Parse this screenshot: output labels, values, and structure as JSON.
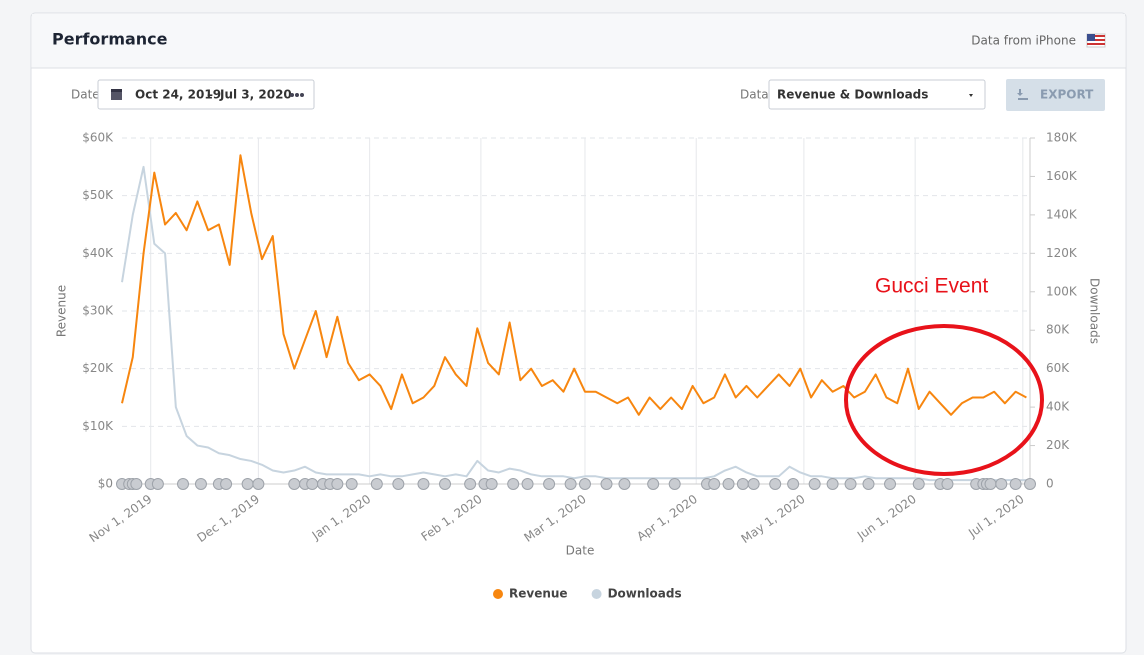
{
  "header": {
    "title": "Performance",
    "source": "Data from iPhone"
  },
  "controls": {
    "date_label": "Date:",
    "date_start": "Oct 24, 2019",
    "date_sep": "–",
    "date_end": "Jul 3, 2020",
    "data_label": "Data:",
    "data_value": "Revenue & Downloads",
    "export": "EXPORT"
  },
  "chart_data": {
    "type": "line",
    "x_label": "Date",
    "y_label": "Revenue",
    "y2_label": "Downloads",
    "annotation": "Gucci Event",
    "grid": true,
    "x": [
      "2019-10-24",
      "2019-10-27",
      "2019-10-30",
      "2019-11-02",
      "2019-11-05",
      "2019-11-08",
      "2019-11-11",
      "2019-11-14",
      "2019-11-17",
      "2019-11-20",
      "2019-11-23",
      "2019-11-26",
      "2019-11-29",
      "2019-12-02",
      "2019-12-05",
      "2019-12-08",
      "2019-12-11",
      "2019-12-14",
      "2019-12-17",
      "2019-12-20",
      "2019-12-23",
      "2019-12-26",
      "2019-12-29",
      "2020-01-01",
      "2020-01-04",
      "2020-01-07",
      "2020-01-10",
      "2020-01-13",
      "2020-01-16",
      "2020-01-19",
      "2020-01-22",
      "2020-01-25",
      "2020-01-28",
      "2020-01-31",
      "2020-02-03",
      "2020-02-06",
      "2020-02-09",
      "2020-02-12",
      "2020-02-15",
      "2020-02-18",
      "2020-02-21",
      "2020-02-24",
      "2020-02-27",
      "2020-03-01",
      "2020-03-04",
      "2020-03-07",
      "2020-03-10",
      "2020-03-13",
      "2020-03-16",
      "2020-03-19",
      "2020-03-22",
      "2020-03-25",
      "2020-03-28",
      "2020-03-31",
      "2020-04-03",
      "2020-04-06",
      "2020-04-09",
      "2020-04-12",
      "2020-04-15",
      "2020-04-18",
      "2020-04-21",
      "2020-04-24",
      "2020-04-27",
      "2020-04-30",
      "2020-05-03",
      "2020-05-06",
      "2020-05-09",
      "2020-05-12",
      "2020-05-15",
      "2020-05-18",
      "2020-05-21",
      "2020-05-24",
      "2020-05-27",
      "2020-05-30",
      "2020-06-02",
      "2020-06-05",
      "2020-06-08",
      "2020-06-11",
      "2020-06-14",
      "2020-06-17",
      "2020-06-20",
      "2020-06-23",
      "2020-06-26",
      "2020-06-29",
      "2020-07-02"
    ],
    "series": [
      {
        "name": "Revenue",
        "color": "#f7860f",
        "values": [
          14000,
          22000,
          40000,
          54000,
          45000,
          47000,
          44000,
          49000,
          44000,
          45000,
          38000,
          57000,
          47000,
          39000,
          43000,
          26000,
          20000,
          25000,
          30000,
          22000,
          29000,
          21000,
          18000,
          19000,
          17000,
          13000,
          19000,
          14000,
          15000,
          17000,
          22000,
          19000,
          17000,
          27000,
          21000,
          19000,
          28000,
          18000,
          20000,
          17000,
          18000,
          16000,
          20000,
          16000,
          16000,
          15000,
          14000,
          15000,
          12000,
          15000,
          13000,
          15000,
          13000,
          17000,
          14000,
          15000,
          19000,
          15000,
          17000,
          15000,
          17000,
          19000,
          17000,
          20000,
          15000,
          18000,
          16000,
          17000,
          15000,
          16000,
          19000,
          15000,
          14000,
          20000,
          13000,
          16000,
          14000,
          12000,
          14000,
          15000,
          15000,
          16000,
          14000,
          16000,
          15000
        ]
      },
      {
        "name": "Downloads",
        "color": "#c7d4df",
        "axis": "y2",
        "values": [
          105000,
          140000,
          165000,
          125000,
          120000,
          40000,
          25000,
          20000,
          19000,
          16000,
          15000,
          13000,
          12000,
          10000,
          7000,
          6000,
          7000,
          9000,
          6000,
          5000,
          5000,
          5000,
          5000,
          4000,
          5000,
          4000,
          4000,
          5000,
          6000,
          5000,
          4000,
          5000,
          4000,
          12000,
          7000,
          6000,
          8000,
          7000,
          5000,
          4000,
          4000,
          4000,
          3000,
          4000,
          4000,
          3000,
          3000,
          3000,
          3000,
          3000,
          3000,
          3000,
          3000,
          3000,
          3000,
          4000,
          7000,
          9000,
          6000,
          4000,
          4000,
          4000,
          9000,
          6000,
          4000,
          4000,
          3000,
          3000,
          3000,
          4000,
          3000,
          3000,
          3000,
          3000,
          3000,
          2000,
          2000,
          2000,
          2000,
          2000,
          2000,
          2000,
          2000,
          2000,
          2000
        ]
      }
    ],
    "events": [
      "2019-10-24",
      "2019-10-26",
      "2019-10-27",
      "2019-10-28",
      "2019-11-01",
      "2019-11-03",
      "2019-11-10",
      "2019-11-15",
      "2019-11-20",
      "2019-11-22",
      "2019-11-28",
      "2019-12-01",
      "2019-12-11",
      "2019-12-14",
      "2019-12-16",
      "2019-12-19",
      "2019-12-21",
      "2019-12-23",
      "2019-12-27",
      "2020-01-03",
      "2020-01-09",
      "2020-01-16",
      "2020-01-22",
      "2020-01-29",
      "2020-02-02",
      "2020-02-04",
      "2020-02-10",
      "2020-02-14",
      "2020-02-20",
      "2020-02-26",
      "2020-03-01",
      "2020-03-07",
      "2020-03-12",
      "2020-03-20",
      "2020-03-26",
      "2020-04-04",
      "2020-04-06",
      "2020-04-10",
      "2020-04-14",
      "2020-04-17",
      "2020-04-23",
      "2020-04-28",
      "2020-05-04",
      "2020-05-09",
      "2020-05-14",
      "2020-05-19",
      "2020-05-25",
      "2020-06-02",
      "2020-06-08",
      "2020-06-10",
      "2020-06-18",
      "2020-06-20",
      "2020-06-21",
      "2020-06-22",
      "2020-06-25",
      "2020-06-29",
      "2020-07-03"
    ],
    "xlim": [
      "2019-10-24",
      "2020-07-03"
    ],
    "xticks": [
      {
        "value": "2019-11-01",
        "label": "Nov 1, 2019"
      },
      {
        "value": "2019-12-01",
        "label": "Dec 1, 2019"
      },
      {
        "value": "2020-01-01",
        "label": "Jan 1, 2020"
      },
      {
        "value": "2020-02-01",
        "label": "Feb 1, 2020"
      },
      {
        "value": "2020-03-01",
        "label": "Mar 1, 2020"
      },
      {
        "value": "2020-04-01",
        "label": "Apr 1, 2020"
      },
      {
        "value": "2020-05-01",
        "label": "May 1, 2020"
      },
      {
        "value": "2020-06-01",
        "label": "Jun 1, 2020"
      },
      {
        "value": "2020-07-01",
        "label": "Jul 1, 2020"
      }
    ],
    "ylim": [
      0,
      60000
    ],
    "yticks": [
      {
        "value": 0,
        "label": "$0"
      },
      {
        "value": 10000,
        "label": "$10K"
      },
      {
        "value": 20000,
        "label": "$20K"
      },
      {
        "value": 30000,
        "label": "$30K"
      },
      {
        "value": 40000,
        "label": "$40K"
      },
      {
        "value": 50000,
        "label": "$50K"
      },
      {
        "value": 60000,
        "label": "$60K"
      }
    ],
    "y2lim": [
      0,
      180000
    ],
    "y2ticks": [
      0,
      {
        "value": 20000,
        "label": "20K"
      },
      {
        "value": 40000,
        "label": "40K"
      },
      {
        "value": 60000,
        "label": "60K"
      },
      {
        "value": 80000,
        "label": "80K"
      },
      {
        "value": 100000,
        "label": "100K"
      },
      {
        "value": 120000,
        "label": "120K"
      },
      {
        "value": 140000,
        "label": "140K"
      },
      {
        "value": 160000,
        "label": "160K"
      },
      {
        "value": 180000,
        "label": "180K"
      }
    ]
  }
}
